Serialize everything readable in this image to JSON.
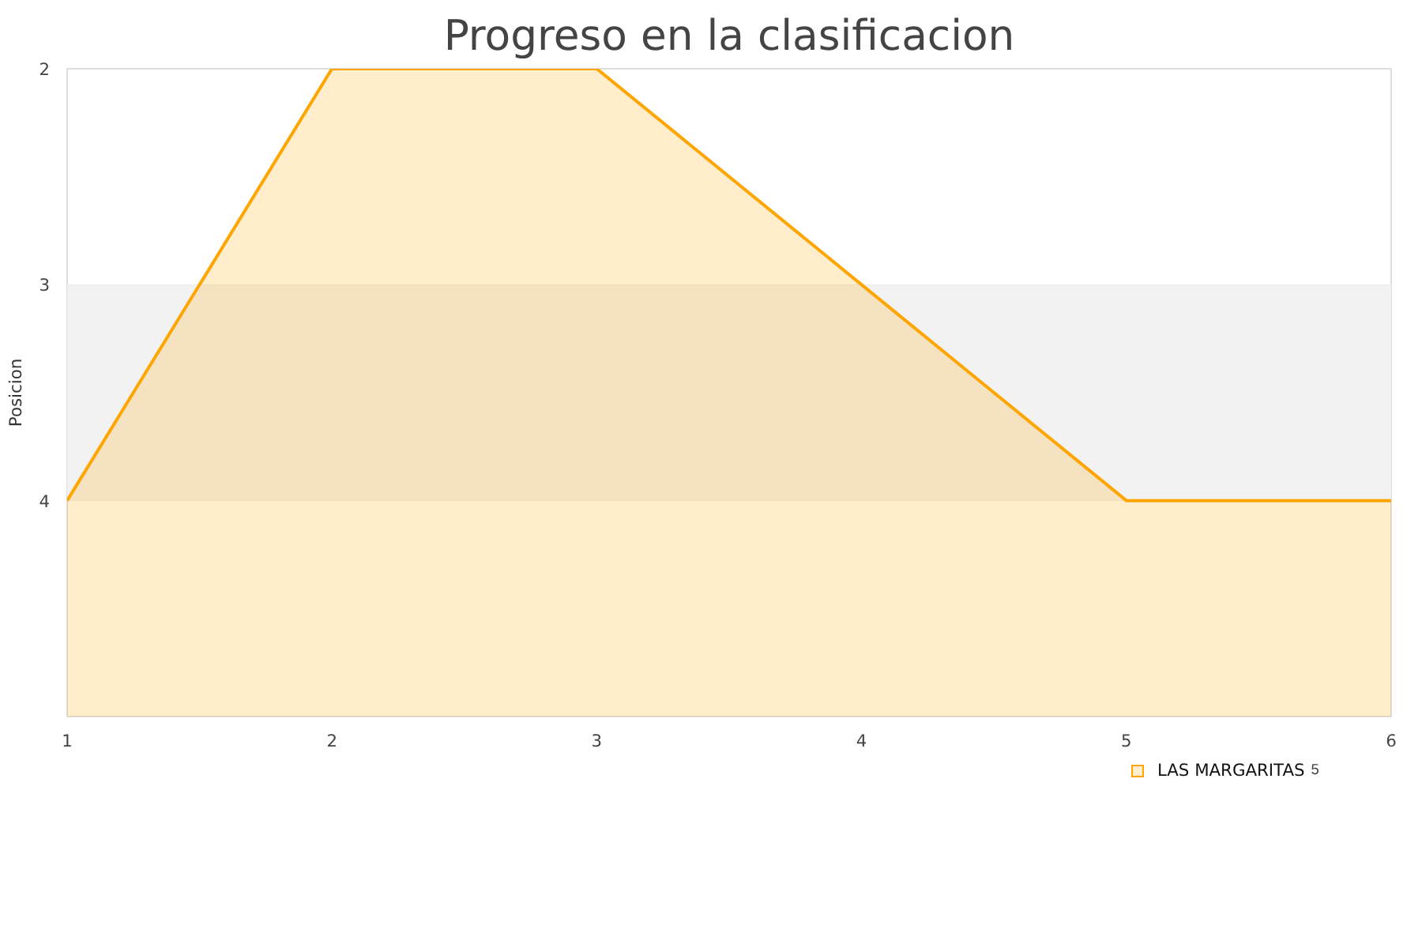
{
  "chart_data": {
    "type": "area",
    "title": "Progreso en la clasificacion",
    "ylabel": "Posicion",
    "x": [
      1,
      2,
      3,
      4,
      5,
      6
    ],
    "series": [
      {
        "name": "LAS MARGARITAS",
        "color": "#ffa500",
        "values": [
          4,
          2,
          2,
          3,
          4,
          4
        ]
      }
    ],
    "xlim": [
      1,
      6
    ],
    "xticks": [
      1,
      2,
      3,
      4,
      5,
      6
    ],
    "ylim": [
      5,
      2
    ],
    "yticks": [
      2,
      3,
      4,
      {
        "value": 5,
        "label": null
      }
    ],
    "bands": [
      {
        "axis": "y",
        "from": 3,
        "to": 4,
        "color": "#f2f2f2"
      }
    ],
    "grid": "y",
    "legend": "bottom right",
    "annotations": [
      "5"
    ]
  }
}
